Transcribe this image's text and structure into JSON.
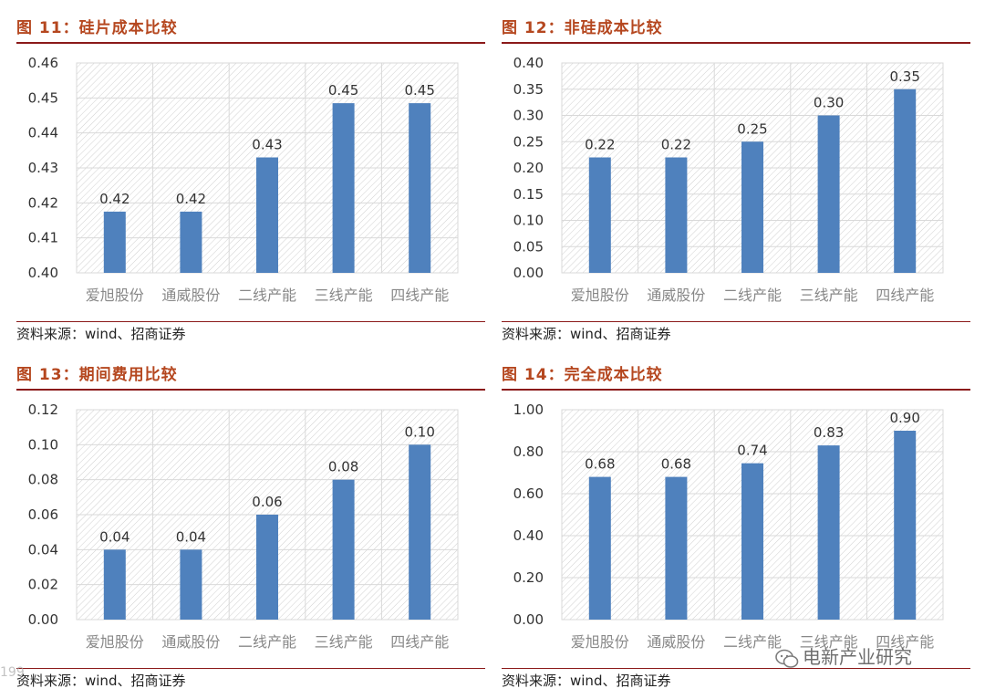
{
  "source_label": "资料来源：wind、招商证券",
  "watermark_text": "电新产业研究",
  "watermark_left": "199",
  "colors": {
    "bar": "#4f81bd",
    "title": "#b5471f",
    "rule": "#8b1a1a",
    "grid": "#d9d9d9",
    "hatch": "#d0d0d0"
  },
  "panels": [
    {
      "title": "图 11：硅片成本比较"
    },
    {
      "title": "图 12：非硅成本比较"
    },
    {
      "title": "图 13：期间费用比较"
    },
    {
      "title": "图 14：完全成本比较"
    }
  ],
  "chart_data": [
    {
      "type": "bar",
      "title": "图 11：硅片成本比较",
      "categories": [
        "爱旭股份",
        "通威股份",
        "二线产能",
        "三线产能",
        "四线产能"
      ],
      "values": [
        0.4175,
        0.4175,
        0.433,
        0.4485,
        0.4485
      ],
      "data_labels": [
        "0.42",
        "0.42",
        "0.43",
        "0.45",
        "0.45"
      ],
      "ylim": [
        0.4,
        0.46
      ],
      "yticks": [
        "0.46",
        "0.45",
        "0.44",
        "0.43",
        "0.42",
        "0.41",
        "0.40"
      ],
      "ytick_values": [
        0.46,
        0.45,
        0.44,
        0.43,
        0.42,
        0.41,
        0.4
      ],
      "grid": true
    },
    {
      "type": "bar",
      "title": "图 12：非硅成本比较",
      "categories": [
        "爱旭股份",
        "通威股份",
        "二线产能",
        "三线产能",
        "四线产能"
      ],
      "values": [
        0.22,
        0.22,
        0.25,
        0.3,
        0.35
      ],
      "data_labels": [
        "0.22",
        "0.22",
        "0.25",
        "0.30",
        "0.35"
      ],
      "ylim": [
        0.0,
        0.4
      ],
      "yticks": [
        "0.40",
        "0.35",
        "0.30",
        "0.25",
        "0.20",
        "0.15",
        "0.10",
        "0.05",
        "0.00"
      ],
      "ytick_values": [
        0.4,
        0.35,
        0.3,
        0.25,
        0.2,
        0.15,
        0.1,
        0.05,
        0.0
      ],
      "grid": true
    },
    {
      "type": "bar",
      "title": "图 13：期间费用比较",
      "categories": [
        "爱旭股份",
        "通威股份",
        "二线产能",
        "三线产能",
        "四线产能"
      ],
      "values": [
        0.04,
        0.04,
        0.06,
        0.08,
        0.1
      ],
      "data_labels": [
        "0.04",
        "0.04",
        "0.06",
        "0.08",
        "0.10"
      ],
      "ylim": [
        0.0,
        0.12
      ],
      "yticks": [
        "0.12",
        "0.10",
        "0.08",
        "0.06",
        "0.04",
        "0.02",
        "0.00"
      ],
      "ytick_values": [
        0.12,
        0.1,
        0.08,
        0.06,
        0.04,
        0.02,
        0.0
      ],
      "grid": true
    },
    {
      "type": "bar",
      "title": "图 14：完全成本比较",
      "categories": [
        "爱旭股份",
        "通威股份",
        "二线产能",
        "三线产能",
        "四线产能"
      ],
      "values": [
        0.68,
        0.68,
        0.745,
        0.83,
        0.9
      ],
      "data_labels": [
        "0.68",
        "0.68",
        "0.74",
        "0.83",
        "0.90"
      ],
      "ylim": [
        0.0,
        1.0
      ],
      "yticks": [
        "1.00",
        "0.80",
        "0.60",
        "0.40",
        "0.20",
        "0.00"
      ],
      "ytick_values": [
        1.0,
        0.8,
        0.6,
        0.4,
        0.2,
        0.0
      ],
      "grid": true
    }
  ]
}
